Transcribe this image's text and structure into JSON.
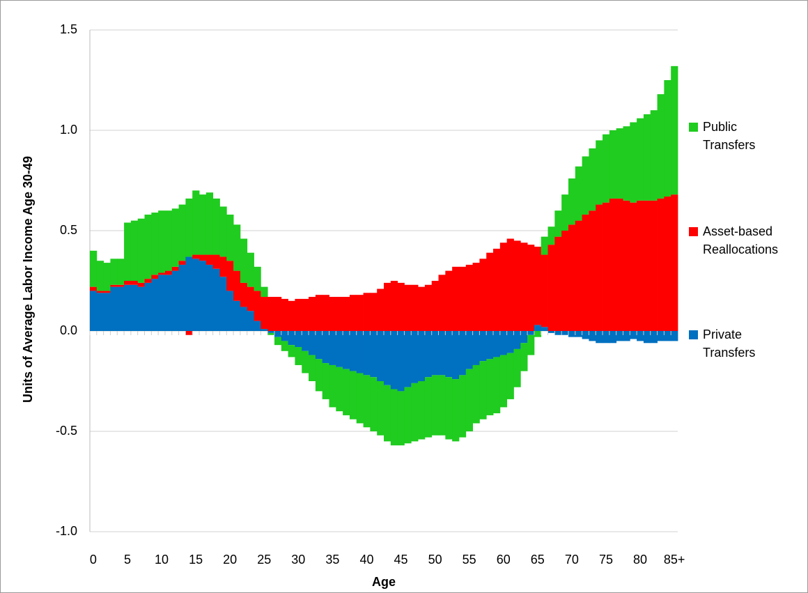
{
  "chart_data": {
    "type": "stacked_bar",
    "x_label": "Age",
    "y_label": "Units of Average Labor Income Age 30-49",
    "categories": [
      "0",
      null,
      null,
      null,
      null,
      "5",
      null,
      null,
      null,
      null,
      "10",
      null,
      null,
      null,
      null,
      "15",
      null,
      null,
      null,
      null,
      "20",
      null,
      null,
      null,
      null,
      "25",
      null,
      null,
      null,
      null,
      "30",
      null,
      null,
      null,
      null,
      "35",
      null,
      null,
      null,
      null,
      "40",
      null,
      null,
      null,
      null,
      "45",
      null,
      null,
      null,
      null,
      "50",
      null,
      null,
      null,
      null,
      "55",
      null,
      null,
      null,
      null,
      "60",
      null,
      null,
      null,
      null,
      "65",
      null,
      null,
      null,
      null,
      "70",
      null,
      null,
      null,
      null,
      "75",
      null,
      null,
      null,
      null,
      "80",
      null,
      null,
      null,
      null,
      "85+"
    ],
    "series": [
      {
        "name": "Private Transfers",
        "color": "#0070c0",
        "values": [
          0.2,
          0.19,
          0.19,
          0.22,
          0.22,
          0.23,
          0.23,
          0.22,
          0.24,
          0.26,
          0.28,
          0.28,
          0.3,
          0.33,
          0.37,
          0.36,
          0.35,
          0.33,
          0.31,
          0.27,
          0.2,
          0.15,
          0.12,
          0.1,
          0.05,
          0.01,
          -0.01,
          -0.03,
          -0.05,
          -0.07,
          -0.08,
          -0.1,
          -0.12,
          -0.14,
          -0.16,
          -0.17,
          -0.18,
          -0.19,
          -0.2,
          -0.21,
          -0.22,
          -0.23,
          -0.25,
          -0.27,
          -0.29,
          -0.3,
          -0.28,
          -0.26,
          -0.25,
          -0.23,
          -0.22,
          -0.22,
          -0.23,
          -0.24,
          -0.22,
          -0.19,
          -0.17,
          -0.15,
          -0.14,
          -0.13,
          -0.12,
          -0.11,
          -0.09,
          -0.06,
          -0.02,
          0.03,
          0.02,
          -0.01,
          -0.02,
          -0.02,
          -0.03,
          -0.03,
          -0.04,
          -0.05,
          -0.06,
          -0.06,
          -0.06,
          -0.05,
          -0.05,
          -0.04,
          -0.05,
          -0.06,
          -0.06,
          -0.05,
          -0.05,
          -0.05
        ]
      },
      {
        "name": "Asset-based Reallocations",
        "color": "#ff0000",
        "values": [
          0.02,
          0.01,
          0.01,
          0.01,
          0.01,
          0.02,
          0.02,
          0.02,
          0.02,
          0.02,
          0.01,
          0.02,
          0.02,
          0.02,
          -0.02,
          0.02,
          0.03,
          0.05,
          0.07,
          0.1,
          0.15,
          0.15,
          0.12,
          0.12,
          0.15,
          0.16,
          0.17,
          0.17,
          0.16,
          0.15,
          0.16,
          0.16,
          0.17,
          0.18,
          0.18,
          0.17,
          0.17,
          0.17,
          0.18,
          0.18,
          0.19,
          0.19,
          0.21,
          0.24,
          0.25,
          0.24,
          0.23,
          0.23,
          0.22,
          0.23,
          0.25,
          0.28,
          0.3,
          0.32,
          0.32,
          0.33,
          0.34,
          0.36,
          0.39,
          0.41,
          0.44,
          0.46,
          0.45,
          0.44,
          0.43,
          0.39,
          0.36,
          0.43,
          0.47,
          0.5,
          0.53,
          0.55,
          0.58,
          0.6,
          0.63,
          0.64,
          0.66,
          0.66,
          0.65,
          0.64,
          0.65,
          0.65,
          0.65,
          0.66,
          0.67,
          0.68
        ]
      },
      {
        "name": "Public Transfers",
        "color": "#1fcc1f",
        "values": [
          0.18,
          0.15,
          0.14,
          0.13,
          0.13,
          0.29,
          0.3,
          0.32,
          0.32,
          0.31,
          0.31,
          0.3,
          0.29,
          0.28,
          0.29,
          0.32,
          0.3,
          0.31,
          0.28,
          0.25,
          0.23,
          0.23,
          0.22,
          0.17,
          0.12,
          0.05,
          -0.01,
          -0.04,
          -0.05,
          -0.06,
          -0.09,
          -0.11,
          -0.13,
          -0.16,
          -0.18,
          -0.21,
          -0.22,
          -0.23,
          -0.24,
          -0.25,
          -0.26,
          -0.27,
          -0.27,
          -0.28,
          -0.28,
          -0.27,
          -0.28,
          -0.29,
          -0.29,
          -0.3,
          -0.3,
          -0.3,
          -0.31,
          -0.31,
          -0.31,
          -0.31,
          -0.29,
          -0.29,
          -0.28,
          -0.28,
          -0.26,
          -0.23,
          -0.19,
          -0.14,
          -0.1,
          -0.03,
          0.09,
          0.09,
          0.13,
          0.18,
          0.23,
          0.27,
          0.29,
          0.31,
          0.32,
          0.34,
          0.34,
          0.35,
          0.37,
          0.4,
          0.41,
          0.43,
          0.45,
          0.52,
          0.58,
          0.64
        ]
      }
    ],
    "ylim": [
      -1,
      1.5
    ],
    "yticks": [
      1.5,
      {
        "value": 1,
        "label": "1.0"
      },
      0.5,
      {
        "value": 0,
        "label": "0.0"
      },
      -0.5,
      {
        "value": -1,
        "label": "-1.0"
      }
    ],
    "grid": true,
    "legend": "right"
  }
}
